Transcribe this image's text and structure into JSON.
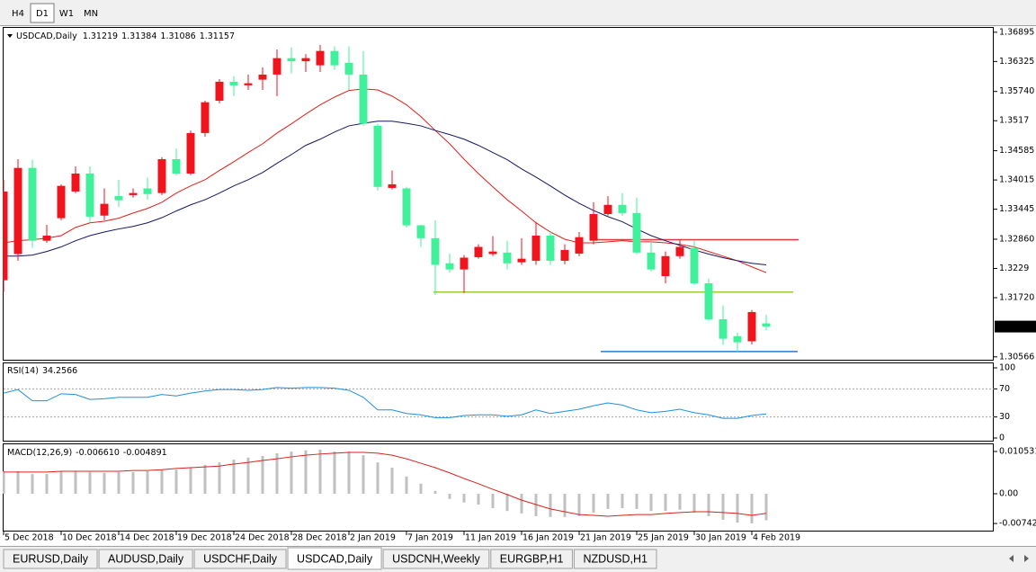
{
  "toolbar": {
    "buttons": [
      {
        "label": "H4",
        "active": false
      },
      {
        "label": "D1",
        "active": true
      },
      {
        "label": "W1",
        "active": false
      },
      {
        "label": "MN",
        "active": false
      }
    ]
  },
  "chart_data": [
    {
      "type": "candlestick",
      "title": "USDCAD,Daily",
      "bull_color": "#f0141e",
      "bear_color": "#40f09a",
      "grid": false,
      "categories": [
        "5 Dec 2018",
        null,
        null,
        null,
        "10 Dec 2018",
        null,
        null,
        null,
        "14 Dec 2018",
        null,
        null,
        null,
        "19 Dec 2018",
        null,
        null,
        null,
        "24 Dec 2018",
        null,
        null,
        null,
        "28 Dec 2018",
        null,
        null,
        null,
        "2 Jan 2019",
        null,
        null,
        null,
        "7 Jan 2019",
        null,
        null,
        null,
        "11 Jan 2019",
        null,
        null,
        null,
        "16 Jan 2019",
        null,
        null,
        null,
        "21 Jan 2019",
        null,
        null,
        null,
        "25 Jan 2019",
        null,
        null,
        null,
        "30 Jan 2019",
        null,
        null,
        null,
        "4 Feb 2019",
        null
      ],
      "open": [
        1.3206,
        1.3257,
        1.3425,
        1.3283,
        1.3327,
        1.3379,
        1.3414,
        1.3332,
        1.337,
        1.3372,
        1.3385,
        1.3376,
        1.3442,
        1.3414,
        1.3493,
        1.3556,
        1.3593,
        1.3586,
        1.3597,
        1.3607,
        1.3639,
        1.3633,
        1.3625,
        1.3653,
        1.363,
        1.3607,
        1.3507,
        1.3386,
        1.3385,
        1.3313,
        1.3288,
        1.3239,
        1.3227,
        1.3251,
        1.3257,
        1.326,
        1.3241,
        1.3244,
        1.3293,
        1.3244,
        1.3258,
        1.3283,
        1.3335,
        1.3353,
        1.3337,
        1.326,
        1.3214,
        1.3253,
        1.3269,
        1.32,
        1.313,
        1.3097,
        1.3087,
        1.31219
      ],
      "high": [
        1.3402,
        1.3442,
        1.3441,
        1.3314,
        1.3393,
        1.3428,
        1.3428,
        1.3385,
        1.3402,
        1.3385,
        1.3406,
        1.3446,
        1.3463,
        1.3498,
        1.3556,
        1.3598,
        1.3604,
        1.3607,
        1.3621,
        1.3656,
        1.366,
        1.3647,
        1.3665,
        1.3662,
        1.3662,
        1.3653,
        1.3511,
        1.342,
        1.3388,
        1.3314,
        1.3323,
        1.3258,
        1.3255,
        1.3276,
        1.3292,
        1.3283,
        1.3288,
        1.332,
        1.33,
        1.3276,
        1.33,
        1.3358,
        1.337,
        1.3376,
        1.3367,
        1.3283,
        1.3262,
        1.3286,
        1.3283,
        1.3209,
        1.3157,
        1.3104,
        1.3148,
        1.31384
      ],
      "low": [
        1.3183,
        1.3244,
        1.3269,
        1.3279,
        1.3323,
        1.3376,
        1.332,
        1.3323,
        1.3349,
        1.3367,
        1.3363,
        1.3372,
        1.3411,
        1.3411,
        1.3486,
        1.3551,
        1.3565,
        1.3577,
        1.3577,
        1.3565,
        1.3609,
        1.3612,
        1.3612,
        1.3616,
        1.3577,
        1.3507,
        1.3381,
        1.3383,
        1.3309,
        1.3271,
        1.3178,
        1.3221,
        1.3181,
        1.3248,
        1.3253,
        1.3227,
        1.3236,
        1.3236,
        1.3236,
        1.3237,
        1.3253,
        1.3276,
        1.3332,
        1.3332,
        1.3257,
        1.3223,
        1.32,
        1.3248,
        1.3197,
        1.3127,
        1.308,
        1.3067,
        1.3081,
        1.31086
      ],
      "close": [
        1.3379,
        1.3425,
        1.3283,
        1.3293,
        1.339,
        1.3414,
        1.333,
        1.3355,
        1.3362,
        1.3376,
        1.3374,
        1.3442,
        1.3414,
        1.3493,
        1.3553,
        1.3593,
        1.3586,
        1.359,
        1.3607,
        1.3639,
        1.3633,
        1.3639,
        1.3653,
        1.3625,
        1.3607,
        1.3511,
        1.3388,
        1.3393,
        1.3313,
        1.3288,
        1.3236,
        1.3227,
        1.325,
        1.3271,
        1.3262,
        1.3239,
        1.3248,
        1.3293,
        1.3244,
        1.3265,
        1.329,
        1.3335,
        1.3353,
        1.3337,
        1.326,
        1.3227,
        1.3253,
        1.3271,
        1.32,
        1.313,
        1.3092,
        1.3085,
        1.3144,
        1.31157
      ],
      "series": [
        {
          "color": "#e0201a",
          "values": [
            1.3279,
            1.3283,
            1.3285,
            1.3288,
            1.3293,
            1.3309,
            1.3318,
            1.3321,
            1.3327,
            1.3337,
            1.3346,
            1.3358,
            1.3376,
            1.339,
            1.3402,
            1.342,
            1.3437,
            1.3455,
            1.3472,
            1.3493,
            1.3511,
            1.353,
            1.3548,
            1.3563,
            1.3576,
            1.3579,
            1.3577,
            1.3565,
            1.3548,
            1.3525,
            1.3498,
            1.3472,
            1.3442,
            1.3414,
            1.3388,
            1.3363,
            1.3341,
            1.3318,
            1.33,
            1.3286,
            1.3279,
            1.3279,
            1.3281,
            1.3283,
            1.3281,
            1.3281,
            1.3279,
            1.3276,
            1.3271,
            1.3262,
            1.3253,
            1.3244,
            1.3232,
            1.3221
          ]
        },
        {
          "color": "#161660",
          "values": [
            1.3253,
            1.3253,
            1.3255,
            1.3262,
            1.3271,
            1.3283,
            1.3293,
            1.33,
            1.3306,
            1.3311,
            1.3318,
            1.3328,
            1.3341,
            1.3353,
            1.3363,
            1.3376,
            1.339,
            1.3402,
            1.3416,
            1.3434,
            1.3451,
            1.3469,
            1.3481,
            1.3495,
            1.3507,
            1.3512,
            1.3516,
            1.3516,
            1.3512,
            1.3507,
            1.3498,
            1.349,
            1.3481,
            1.3469,
            1.3455,
            1.3441,
            1.3423,
            1.3407,
            1.339,
            1.3372,
            1.3356,
            1.3342,
            1.333,
            1.332,
            1.3306,
            1.3293,
            1.3283,
            1.3274,
            1.3265,
            1.3257,
            1.325,
            1.3244,
            1.3239,
            1.3236
          ]
        }
      ],
      "levels": [
        {
          "value": 1.3285,
          "color": "#e03a3a"
        },
        {
          "value": 1.3183,
          "color": "#9acd32"
        },
        {
          "value": 1.3067,
          "color": "#1e7fd6"
        }
      ],
      "ylim": [
        1.3051,
        1.3698
      ],
      "yticks": [
        1.36895,
        1.36325,
        {
          "value": 1.3574,
          "label": "1.35740"
        },
        1.3517,
        1.34585,
        1.34015,
        1.33445,
        {
          "value": 1.3286,
          "label": "1.32860"
        },
        1.3229,
        {
          "value": 1.3172,
          "label": "1.31720"
        },
        1.30566
      ]
    },
    {
      "type": "line",
      "title": "RSI(14)",
      "grid": false,
      "levels": [
        70,
        30
      ],
      "series": [
        {
          "color": "#1e8fe0",
          "values": [
            64,
            69,
            53,
            53,
            63,
            62,
            55,
            56,
            58,
            58,
            58,
            62,
            60,
            64,
            67,
            69,
            69,
            68,
            69,
            72,
            71,
            72,
            72,
            71,
            68,
            58,
            40,
            40,
            35,
            33,
            29,
            29,
            32,
            33,
            33,
            31,
            33,
            40,
            35,
            38,
            41,
            46,
            50,
            47,
            40,
            36,
            38,
            41,
            36,
            33,
            28,
            28,
            32,
            34.2566
          ]
        }
      ],
      "ylim": [
        0,
        100
      ],
      "yticks": [
        100,
        70,
        30,
        0
      ]
    },
    {
      "type": "macd",
      "title": "MACD(12,26,9)",
      "grid": false,
      "series": [
        {
          "color": "#c0c0c0",
          "values": [
            0.0056,
            0.0056,
            0.0049,
            0.0049,
            0.0056,
            0.0056,
            0.0054,
            0.0052,
            0.0054,
            0.0054,
            0.0056,
            0.006,
            0.006,
            0.0065,
            0.0072,
            0.0078,
            0.0085,
            0.009,
            0.0094,
            0.0101,
            0.0105,
            0.0108,
            0.011,
            0.0105,
            0.0105,
            0.0096,
            0.0078,
            0.0065,
            0.0043,
            0.0025,
            0.0007,
            -0.0013,
            -0.0022,
            -0.0027,
            -0.0036,
            -0.0043,
            -0.0049,
            -0.0056,
            -0.0058,
            -0.0058,
            -0.0056,
            -0.0047,
            -0.0038,
            -0.0036,
            -0.0038,
            -0.0043,
            -0.0043,
            -0.004,
            -0.0047,
            -0.0056,
            -0.0065,
            -0.0072,
            -0.0074,
            -0.00661
          ],
          "value_labels": [
            null,
            null,
            null,
            null,
            null,
            null,
            null,
            null,
            null,
            null,
            null,
            null,
            null,
            null,
            null,
            null,
            null,
            null,
            null,
            null,
            null,
            null,
            null,
            null,
            null,
            null,
            null,
            null,
            null,
            null,
            null,
            null,
            null,
            null,
            null,
            null,
            null,
            null,
            null,
            null,
            null,
            null,
            null,
            null,
            null,
            null,
            null,
            null,
            null,
            null,
            null,
            null,
            null,
            "-0.006610"
          ]
        },
        {
          "color": "#e0201a",
          "values": [
            0.0054,
            0.0054,
            0.0054,
            0.0054,
            0.0056,
            0.0056,
            0.0056,
            0.0056,
            0.0056,
            0.0058,
            0.0058,
            0.006,
            0.0063,
            0.0065,
            0.0067,
            0.0069,
            0.0074,
            0.0078,
            0.0083,
            0.0087,
            0.0092,
            0.0096,
            0.0099,
            0.0101,
            0.0103,
            0.0103,
            0.0101,
            0.0096,
            0.0087,
            0.0076,
            0.0065,
            0.0052,
            0.0038,
            0.0025,
            0.0011,
            -0.0002,
            -0.0016,
            -0.0027,
            -0.0038,
            -0.0045,
            -0.0052,
            -0.0054,
            -0.0056,
            -0.0054,
            -0.0052,
            -0.0052,
            -0.0049,
            -0.0047,
            -0.0045,
            -0.0045,
            -0.0047,
            -0.0049,
            -0.0054,
            -0.004891
          ],
          "value_labels": [
            null,
            null,
            null,
            null,
            null,
            null,
            null,
            null,
            null,
            null,
            null,
            null,
            null,
            null,
            null,
            null,
            null,
            null,
            null,
            null,
            null,
            null,
            null,
            null,
            null,
            null,
            null,
            null,
            null,
            null,
            null,
            null,
            null,
            null,
            null,
            null,
            null,
            null,
            null,
            null,
            null,
            null,
            null,
            null,
            null,
            null,
            null,
            null,
            null,
            null,
            null,
            null,
            null,
            "-0.004891"
          ]
        }
      ],
      "ylim": [
        -0.0092,
        0.0121
      ],
      "yticks": [
        0.010531,
        {
          "value": 0,
          "label": "0.00"
        },
        -0.007426
      ]
    }
  ],
  "tabs": [
    {
      "label": "EURUSD,Daily",
      "active": false
    },
    {
      "label": "AUDUSD,Daily",
      "active": false
    },
    {
      "label": "USDCHF,Daily",
      "active": false
    },
    {
      "label": "USDCAD,Daily",
      "active": true
    },
    {
      "label": "USDCNH,Weekly",
      "active": false
    },
    {
      "label": "EURGBP,H1",
      "active": false
    },
    {
      "label": "NZDUSD,H1",
      "active": false
    }
  ]
}
